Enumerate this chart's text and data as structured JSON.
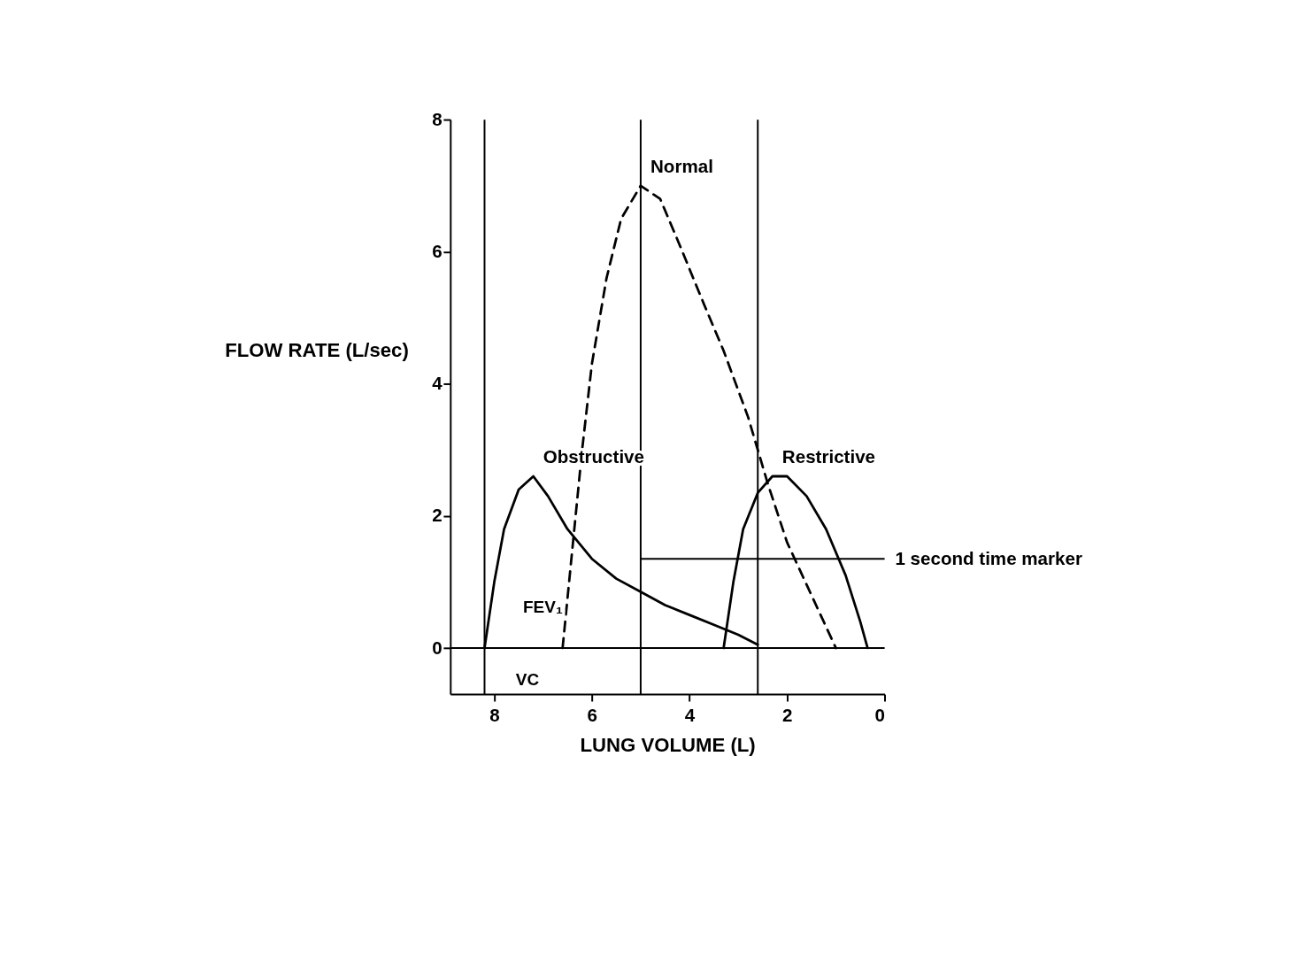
{
  "chart_data": {
    "type": "line",
    "xlabel": "LUNG VOLUME (L)",
    "ylabel": "FLOW RATE (L/sec)",
    "xlim": [
      8.9,
      0
    ],
    "ylim": [
      -0.7,
      8
    ],
    "xticks": [
      8,
      6,
      4,
      2,
      0
    ],
    "yticks": [
      0,
      2,
      4,
      6,
      8
    ],
    "grid": false,
    "legend": false,
    "marker": "none",
    "series": [
      {
        "name": "Normal",
        "color": "#000000",
        "line_style": "dashed",
        "x": [
          6.6,
          6.4,
          6.2,
          6.0,
          5.7,
          5.4,
          5.0,
          4.6,
          4.2,
          3.7,
          3.3,
          2.8,
          2.4,
          2.0,
          1.5,
          1.0
        ],
        "values": [
          0,
          1.5,
          3.0,
          4.3,
          5.6,
          6.5,
          7.0,
          6.8,
          6.1,
          5.2,
          4.5,
          3.5,
          2.5,
          1.6,
          0.8,
          0
        ]
      },
      {
        "name": "Obstructive",
        "color": "#000000",
        "line_style": "solid",
        "x": [
          8.2,
          8.0,
          7.8,
          7.5,
          7.2,
          6.9,
          6.5,
          6.0,
          5.5,
          5.0,
          4.5,
          4.0,
          3.5,
          3.0,
          2.6
        ],
        "values": [
          0,
          1.0,
          1.8,
          2.4,
          2.6,
          2.3,
          1.8,
          1.35,
          1.05,
          0.85,
          0.65,
          0.5,
          0.35,
          0.2,
          0.05
        ]
      },
      {
        "name": "Restrictive",
        "color": "#000000",
        "line_style": "solid",
        "x": [
          3.3,
          3.1,
          2.9,
          2.6,
          2.3,
          2.0,
          1.6,
          1.2,
          0.8,
          0.5,
          0.35
        ],
        "values": [
          0,
          1.0,
          1.8,
          2.35,
          2.6,
          2.6,
          2.3,
          1.8,
          1.1,
          0.4,
          0
        ]
      }
    ],
    "ref_lines": [
      {
        "axis": "y",
        "value": 0,
        "color": "#000000"
      },
      {
        "axis": "x",
        "value": 8.2,
        "color": "#000000"
      },
      {
        "axis": "x",
        "value": 5.0,
        "color": "#000000"
      },
      {
        "axis": "x",
        "value": 2.6,
        "color": "#000000"
      }
    ],
    "annotations": [
      "FEV₁",
      "VC",
      {
        "text": "1 second time marker",
        "x": 5.0,
        "y": 1.35
      }
    ]
  }
}
